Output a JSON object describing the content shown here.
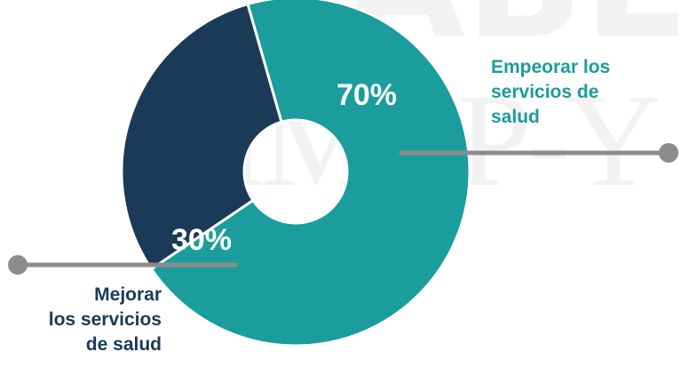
{
  "watermark": {
    "line1": "SABE",
    "line2": "IMCP-Y"
  },
  "colors": {
    "empeorar": "#1a9d9c",
    "mejorar": "#1b3a58",
    "connector": "#8c8c8c",
    "separator": "#ffffff"
  },
  "chart_data": {
    "type": "pie",
    "variant": "donut",
    "title": "",
    "slices": [
      {
        "label": "Empeorar los servicios de salud",
        "value": 70,
        "display": "70%",
        "color": "#1a9d9c"
      },
      {
        "label": "Mejorar los servicios de salud",
        "value": 30,
        "display": "30%",
        "color": "#1b3a58"
      }
    ],
    "labels_position": "callouts outside the ring"
  },
  "callouts": {
    "empeorar": [
      "Empeorar los",
      "servicios de",
      "salud"
    ],
    "mejorar": [
      "Mejorar",
      "los servicios",
      "de salud"
    ]
  }
}
